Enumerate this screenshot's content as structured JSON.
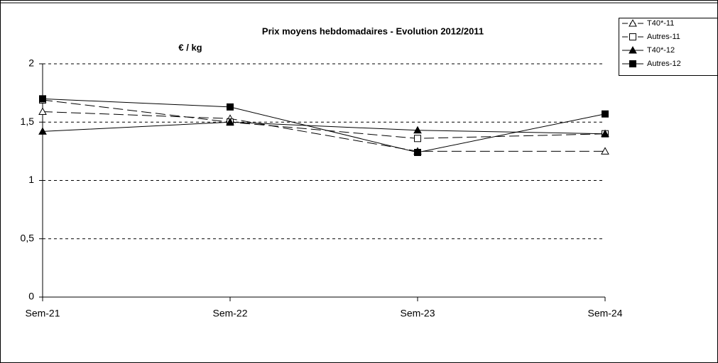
{
  "chart_data": {
    "type": "line",
    "title": "Prix moyens hebdomadaires - Evolution  2012/2011",
    "y_label": "€ / kg",
    "categories": [
      "Sem-21",
      "Sem-22",
      "Sem-23",
      "Sem-24"
    ],
    "series": [
      {
        "name": "T40*-11",
        "color": "#000000",
        "marker": "triangle-open",
        "dash": true,
        "values": [
          1.59,
          1.53,
          1.25,
          1.25
        ]
      },
      {
        "name": "Autres-11",
        "color": "#000000",
        "marker": "square-open",
        "dash": true,
        "values": [
          1.69,
          1.5,
          1.36,
          1.4
        ]
      },
      {
        "name": "T40*-12",
        "color": "#000000",
        "marker": "triangle",
        "dash": false,
        "values": [
          1.42,
          1.5,
          1.43,
          1.4
        ]
      },
      {
        "name": "Autres-12",
        "color": "#000000",
        "marker": "square",
        "dash": false,
        "values": [
          1.7,
          1.63,
          1.24,
          1.57
        ]
      }
    ],
    "ylim": [
      0,
      2
    ],
    "yticks": [
      0,
      {
        "value": 0.5,
        "label": "0,5"
      },
      1,
      {
        "value": 1.5,
        "label": "1,5"
      },
      2
    ],
    "grid": true,
    "legend": "top-right"
  }
}
